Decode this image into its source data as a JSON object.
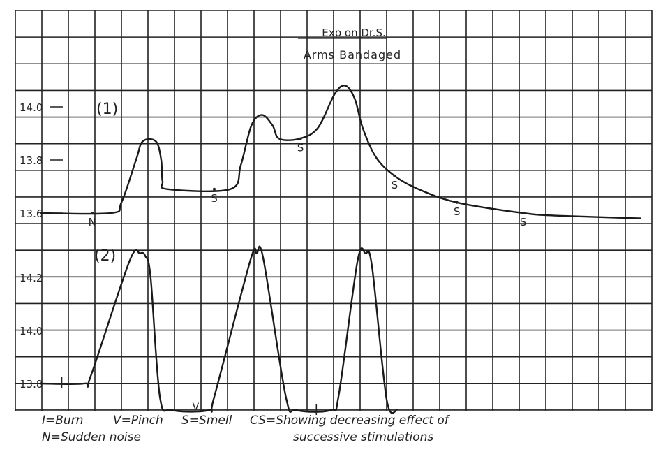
{
  "chart_data": {
    "type": "line",
    "title": "Exp on Dr.S.",
    "subtitle": "Arms Bandaged",
    "grid": true,
    "x_units": "grid columns (no labelled axis)",
    "xlim": [
      0,
      24
    ],
    "series": [
      {
        "name": "(1)",
        "ylim": [
          13.5,
          14.15
        ],
        "yticks": [
          "13.6",
          "13.8",
          "14.0"
        ],
        "ytick_values": [
          13.6,
          13.8,
          14.0
        ],
        "points": [
          [
            0.95,
            13.6
          ],
          [
            3.6,
            13.6
          ],
          [
            4.0,
            13.64
          ],
          [
            4.55,
            13.8
          ],
          [
            4.8,
            13.87
          ],
          [
            5.3,
            13.87
          ],
          [
            5.5,
            13.8
          ],
          [
            5.55,
            13.72
          ],
          [
            5.75,
            13.69
          ],
          [
            8.1,
            13.69
          ],
          [
            8.5,
            13.78
          ],
          [
            8.9,
            13.93
          ],
          [
            9.3,
            13.97
          ],
          [
            9.7,
            13.93
          ],
          [
            9.95,
            13.88
          ],
          [
            10.7,
            13.88
          ],
          [
            11.4,
            13.92
          ],
          [
            12.05,
            14.05
          ],
          [
            12.45,
            14.08
          ],
          [
            12.8,
            14.03
          ],
          [
            13.1,
            13.92
          ],
          [
            13.6,
            13.81
          ],
          [
            14.3,
            13.74
          ],
          [
            15.2,
            13.69
          ],
          [
            16.65,
            13.64
          ],
          [
            19.15,
            13.6
          ],
          [
            20.5,
            13.59
          ],
          [
            23.6,
            13.58
          ]
        ],
        "markers": [
          {
            "label": "N",
            "x": 2.9,
            "y": 13.6
          },
          {
            "label": "S",
            "x": 7.5,
            "y": 13.69
          },
          {
            "label": "S",
            "x": 10.75,
            "y": 13.88
          },
          {
            "label": "S",
            "x": 14.3,
            "y": 13.74
          },
          {
            "label": "S",
            "x": 16.65,
            "y": 13.64
          },
          {
            "label": "S",
            "x": 19.15,
            "y": 13.6
          }
        ]
      },
      {
        "name": "(2)",
        "ylim": [
          13.7,
          14.35
        ],
        "yticks": [
          "13.8",
          "14.0",
          "14.2"
        ],
        "ytick_values": [
          13.8,
          14.0,
          14.2
        ],
        "points": [
          [
            0.95,
            13.8
          ],
          [
            2.6,
            13.8
          ],
          [
            2.85,
            13.83
          ],
          [
            4.3,
            14.26
          ],
          [
            4.7,
            14.29
          ],
          [
            4.9,
            14.28
          ],
          [
            5.1,
            14.2
          ],
          [
            5.45,
            13.75
          ],
          [
            5.9,
            13.7
          ],
          [
            7.3,
            13.7
          ],
          [
            7.5,
            13.75
          ],
          [
            8.85,
            14.26
          ],
          [
            9.1,
            14.29
          ],
          [
            9.35,
            14.27
          ],
          [
            10.2,
            13.75
          ],
          [
            10.6,
            13.7
          ],
          [
            11.9,
            13.7
          ],
          [
            12.2,
            13.76
          ],
          [
            12.9,
            14.26
          ],
          [
            13.2,
            14.29
          ],
          [
            13.45,
            14.24
          ],
          [
            14.0,
            13.74
          ],
          [
            14.4,
            13.7
          ]
        ],
        "markers": [
          {
            "label": "I",
            "x": 1.75,
            "y": 13.8
          },
          {
            "label": "V",
            "x": 6.8,
            "y": 13.7
          },
          {
            "label": "I",
            "x": 11.35,
            "y": 13.7
          }
        ]
      }
    ],
    "legend": {
      "line1": [
        "I=Burn",
        "V=Pinch",
        "S=Smell",
        "CS=Showing decreasing effect of"
      ],
      "line2": [
        "N=Sudden noise",
        "successive stimulations"
      ]
    }
  }
}
